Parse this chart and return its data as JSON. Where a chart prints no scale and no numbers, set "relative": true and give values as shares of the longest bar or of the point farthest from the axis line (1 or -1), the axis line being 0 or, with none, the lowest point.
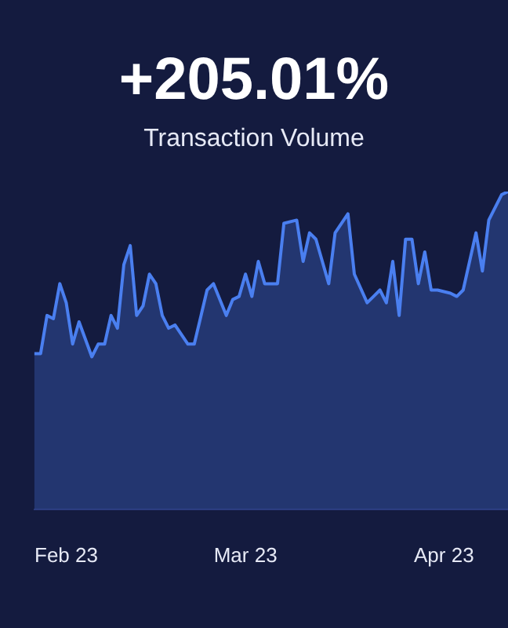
{
  "chart_data": {
    "type": "area",
    "title": "+205.01%",
    "subtitle": "Transaction Volume",
    "relative": true,
    "x": [
      "2023-01-27",
      "2023-01-28",
      "2023-01-29",
      "2023-01-30",
      "2023-01-31",
      "2023-02-01",
      "2023-02-02",
      "2023-02-03",
      "2023-02-05",
      "2023-02-06",
      "2023-02-07",
      "2023-02-08",
      "2023-02-09",
      "2023-02-10",
      "2023-02-11",
      "2023-02-12",
      "2023-02-13",
      "2023-02-14",
      "2023-02-15",
      "2023-02-16",
      "2023-02-17",
      "2023-02-18",
      "2023-02-20",
      "2023-02-21",
      "2023-02-23",
      "2023-02-24",
      "2023-02-26",
      "2023-02-27",
      "2023-02-28",
      "2023-03-01",
      "2023-03-02",
      "2023-03-03",
      "2023-03-04",
      "2023-03-06",
      "2023-03-07",
      "2023-03-09",
      "2023-03-10",
      "2023-03-11",
      "2023-03-12",
      "2023-03-14",
      "2023-03-15",
      "2023-03-17",
      "2023-03-18",
      "2023-03-20",
      "2023-03-21",
      "2023-03-22",
      "2023-03-23",
      "2023-03-24",
      "2023-03-25",
      "2023-03-26",
      "2023-03-27",
      "2023-03-28",
      "2023-03-29",
      "2023-03-30",
      "2023-03-31",
      "2023-04-02",
      "2023-04-03",
      "2023-04-04",
      "2023-04-06",
      "2023-04-07",
      "2023-04-08",
      "2023-04-10",
      "2023-04-11"
    ],
    "series": [
      {
        "color": "#4a7ff0",
        "values": [
          0.49,
          0.49,
          0.61,
          0.6,
          0.71,
          0.65,
          0.52,
          0.59,
          0.48,
          0.52,
          0.52,
          0.61,
          0.57,
          0.77,
          0.83,
          0.61,
          0.64,
          0.74,
          0.71,
          0.61,
          0.57,
          0.58,
          0.52,
          0.52,
          0.69,
          0.71,
          0.61,
          0.66,
          0.67,
          0.74,
          0.67,
          0.78,
          0.71,
          0.71,
          0.9,
          0.91,
          0.78,
          0.87,
          0.85,
          0.71,
          0.87,
          0.93,
          0.74,
          0.65,
          0.67,
          0.69,
          0.65,
          0.78,
          0.61,
          0.85,
          0.85,
          0.71,
          0.81,
          0.69,
          0.69,
          0.68,
          0.67,
          0.69,
          0.87,
          0.75,
          0.91,
          0.99,
          1
        ]
      }
    ],
    "xlim": [
      "2023-01-27",
      "2023-04-11"
    ],
    "xticks": [
      {
        "value": "2023-02-01",
        "label": "Feb 23"
      },
      {
        "value": "2023-03-01",
        "label": "Mar 23"
      },
      {
        "value": "2023-04-01",
        "label": "Apr 23"
      }
    ]
  }
}
